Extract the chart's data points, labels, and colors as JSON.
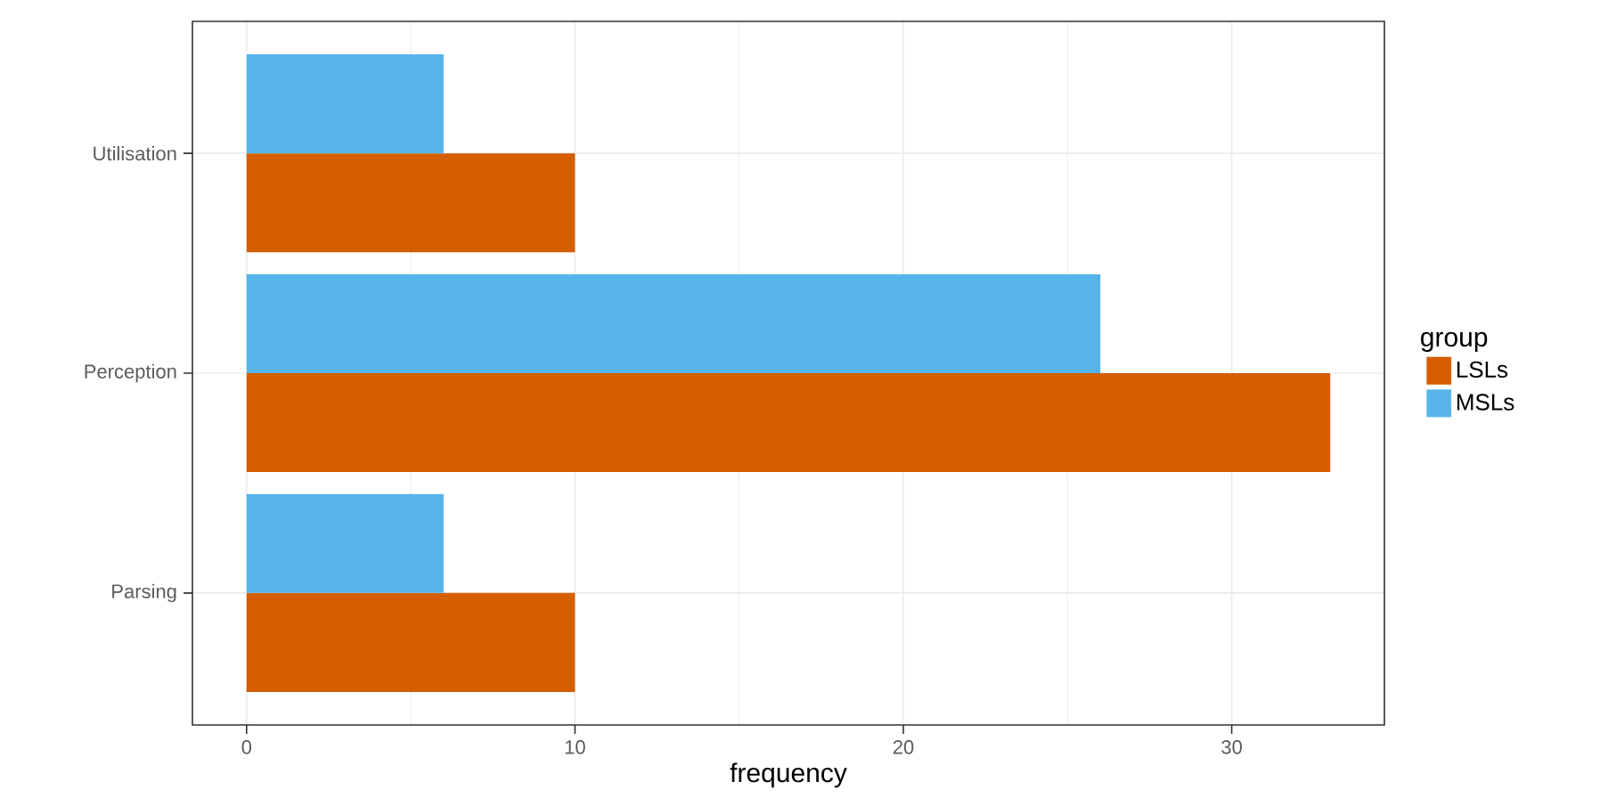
{
  "chart_data": {
    "type": "bar",
    "orientation": "horizontal",
    "xlabel": "frequency",
    "legend_title": "group",
    "categories": [
      "Utilisation",
      "Perception",
      "Parsing"
    ],
    "series": [
      {
        "name": "LSLs",
        "color": "#d55e00",
        "values": [
          10,
          33,
          10
        ]
      },
      {
        "name": "MSLs",
        "color": "#56b4e9",
        "values": [
          6,
          26,
          6
        ]
      }
    ],
    "xlim": [
      -1.65,
      34.65
    ],
    "xticks": [
      0,
      10,
      20,
      30
    ],
    "grid": true,
    "legend": "right"
  }
}
